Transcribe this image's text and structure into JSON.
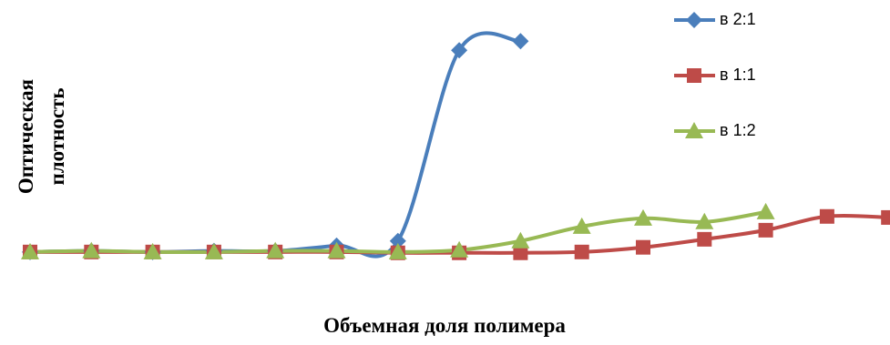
{
  "chart_data": {
    "type": "line",
    "x_label": "Объемная доля полимера",
    "y_label_lines": [
      "Оптическая",
      "плотность"
    ],
    "categories": [
      null,
      null,
      null,
      null,
      null,
      null,
      null,
      null,
      null,
      null,
      null,
      null,
      null,
      null,
      null
    ],
    "ylim": [
      -0.1,
      1.1
    ],
    "grid": false,
    "legend": "right",
    "series": [
      {
        "name": "в 2:1",
        "color": "#4a7ebb",
        "marker": "diamond",
        "values": [
          0.004,
          0.009,
          0.004,
          0.009,
          0.009,
          0.034,
          0.056,
          0.957,
          1.0,
          null,
          null,
          null,
          null,
          null,
          null
        ]
      },
      {
        "name": "в 1:1",
        "color": "#be4b48",
        "marker": "square",
        "values": [
          0.004,
          0.004,
          0.004,
          0.004,
          0.004,
          0.004,
          0,
          0,
          0,
          0.004,
          0.026,
          0.064,
          0.107,
          0.172,
          0.167
        ]
      },
      {
        "name": "в 1:2",
        "color": "#98b954",
        "marker": "triangle",
        "values": [
          0.004,
          0.009,
          0.004,
          0.004,
          0.009,
          0.009,
          0.004,
          0.013,
          0.056,
          0.124,
          0.163,
          0.146,
          0.193,
          null,
          null
        ]
      }
    ]
  }
}
